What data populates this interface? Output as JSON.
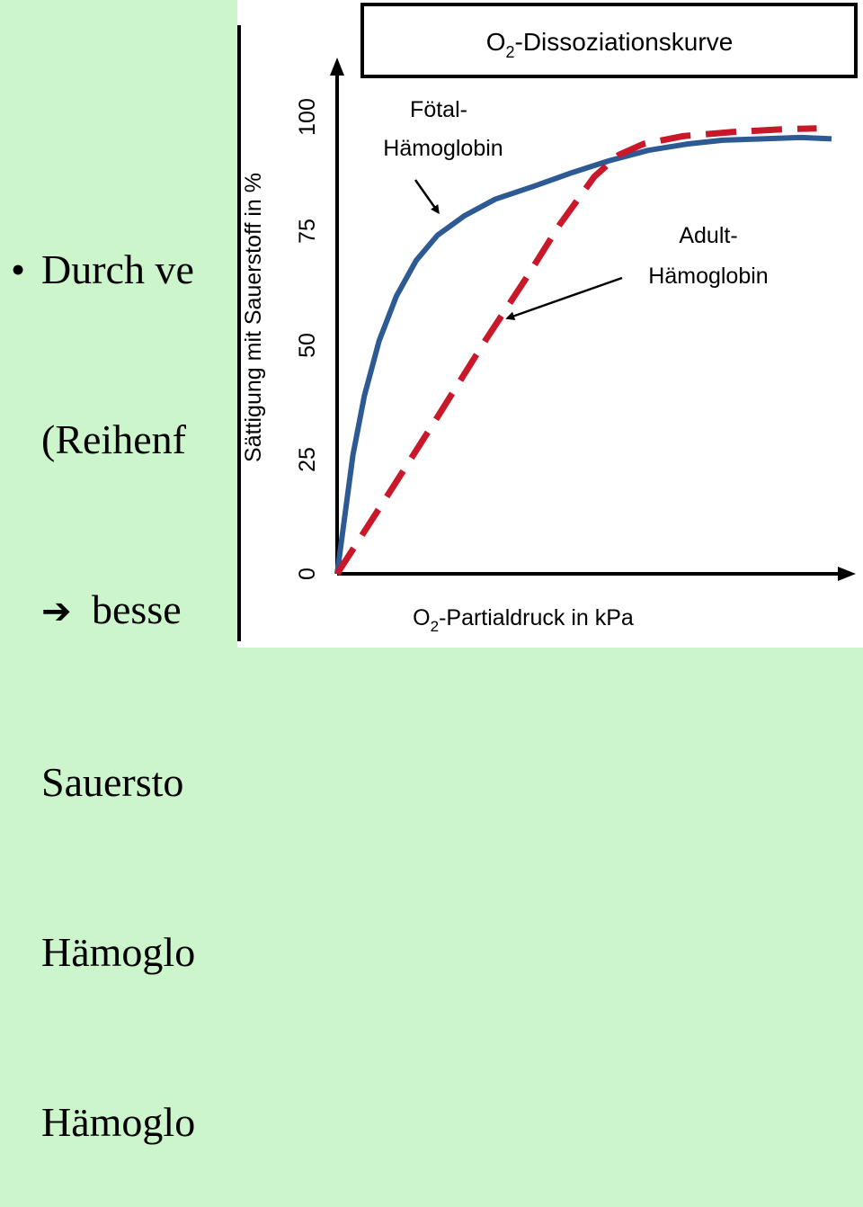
{
  "slide": {
    "bullet": "•",
    "arrow": "➔",
    "lines": [
      "Durch ve",
      "(Reihenf",
      "besse",
      "Sauersto",
      "Hämoglo",
      "Hämoglo"
    ]
  },
  "chart_data": {
    "type": "line",
    "title_main": "O",
    "title_sub": "2",
    "title_rest": "-Dissoziationskurve",
    "xlabel_main": "O",
    "xlabel_sub": "2",
    "xlabel_rest": "-Partialdruck in kPa",
    "ylabel": "Sättigung mit Sauerstoff in %",
    "yticks": [
      "0",
      "25",
      "50",
      "75",
      "100"
    ],
    "ylim": [
      0,
      100
    ],
    "xlim": [
      0,
      100
    ],
    "grid": false,
    "series": [
      {
        "name": "Fötal-Hämoglobin",
        "label_lines": [
          "Fötal-",
          "Hämoglobin"
        ],
        "color": "#2e5a94",
        "style": "solid",
        "x": [
          0,
          1.6,
          3.2,
          5.5,
          8.5,
          12,
          16,
          20.3,
          25.8,
          32,
          40,
          47.5,
          55,
          63,
          71,
          78,
          86,
          94,
          100
        ],
        "y": [
          0,
          13,
          26,
          38.9,
          51,
          60.8,
          68.6,
          74.1,
          78.4,
          82,
          84.9,
          87.8,
          90.4,
          92.7,
          94.1,
          94.9,
          95.2,
          95.5,
          95.2
        ]
      },
      {
        "name": "Adult-Hämoglobin",
        "label_lines": [
          "Adult-",
          "Hämoglobin"
        ],
        "color": "#c8182a",
        "style": "dashed",
        "x": [
          0,
          10,
          20,
          30,
          38,
          45,
          52,
          57,
          62,
          70,
          80,
          90,
          97
        ],
        "y": [
          0,
          16.8,
          33.8,
          51.1,
          64.3,
          76.4,
          86.9,
          91.7,
          94.1,
          95.8,
          96.7,
          97.3,
          97.5
        ]
      }
    ]
  }
}
